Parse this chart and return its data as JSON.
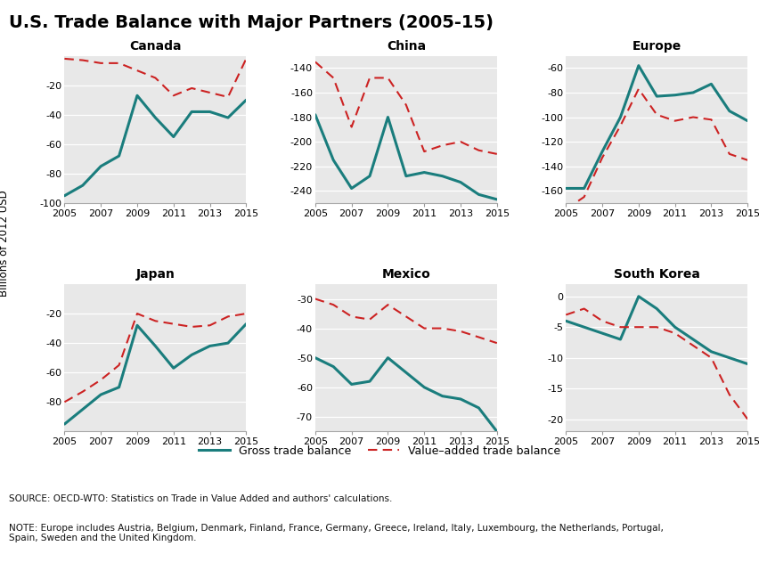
{
  "title": "U.S. Trade Balance with Major Partners (2005-15)",
  "ylabel": "Billions of 2012 USD",
  "source_text": "SOURCE: OECD-WTO: Statistics on Trade in Value Added and authors' calculations.",
  "note_text": "NOTE: Europe includes Austria, Belgium, Denmark, Finland, France, Germany, Greece, Ireland, Italy, Luxembourg, the Netherlands, Portugal,\nSpain, Sweden and the United Kingdom.",
  "years": [
    2005,
    2006,
    2007,
    2008,
    2009,
    2010,
    2011,
    2012,
    2013,
    2014,
    2015
  ],
  "panels": {
    "Canada": {
      "gross": [
        -95,
        -88,
        -75,
        -68,
        -27,
        -42,
        -55,
        -38,
        -38,
        -42,
        -30
      ],
      "va": [
        -2,
        -3,
        -5,
        -5,
        -10,
        -15,
        -27,
        -22,
        -25,
        -28,
        -2
      ],
      "ylim": [
        -100,
        0
      ],
      "yticks": [
        -100,
        -80,
        -60,
        -40,
        -20
      ],
      "row": 0,
      "col": 0
    },
    "China": {
      "gross": [
        -178,
        -215,
        -238,
        -228,
        -180,
        -228,
        -225,
        -228,
        -233,
        -243,
        -247
      ],
      "va": [
        -135,
        -148,
        -188,
        -148,
        -148,
        -170,
        -208,
        -203,
        -200,
        -207,
        -210
      ],
      "ylim": [
        -250,
        -130
      ],
      "yticks": [
        -240,
        -220,
        -200,
        -180,
        -160,
        -140
      ],
      "row": 0,
      "col": 1
    },
    "Europe": {
      "gross": [
        -158,
        -158,
        -128,
        -100,
        -58,
        -83,
        -82,
        -80,
        -73,
        -95,
        -103
      ],
      "va": [
        -175,
        -165,
        -133,
        -107,
        -77,
        -98,
        -103,
        -100,
        -102,
        -130,
        -135
      ],
      "ylim": [
        -170,
        -50
      ],
      "yticks": [
        -160,
        -140,
        -120,
        -100,
        -80,
        -60
      ],
      "row": 0,
      "col": 2
    },
    "Japan": {
      "gross": [
        -95,
        -85,
        -75,
        -70,
        -28,
        -42,
        -57,
        -48,
        -42,
        -40,
        -27
      ],
      "va": [
        -80,
        -73,
        -65,
        -55,
        -20,
        -25,
        -27,
        -29,
        -28,
        -22,
        -20
      ],
      "ylim": [
        -100,
        0
      ],
      "yticks": [
        -80,
        -60,
        -40,
        -20
      ],
      "row": 1,
      "col": 0
    },
    "Mexico": {
      "gross": [
        -50,
        -53,
        -59,
        -58,
        -50,
        -55,
        -60,
        -63,
        -64,
        -67,
        -75
      ],
      "va": [
        -30,
        -32,
        -36,
        -37,
        -32,
        -36,
        -40,
        -40,
        -41,
        -43,
        -45
      ],
      "ylim": [
        -75,
        -25
      ],
      "yticks": [
        -70,
        -60,
        -50,
        -40,
        -30
      ],
      "row": 1,
      "col": 1
    },
    "South Korea": {
      "gross": [
        -4,
        -5,
        -6,
        -7,
        0,
        -2,
        -5,
        -7,
        -9,
        -10,
        -11
      ],
      "va": [
        -3,
        -2,
        -4,
        -5,
        -5,
        -5,
        -6,
        -8,
        -10,
        -16,
        -20
      ],
      "ylim": [
        -22,
        2
      ],
      "yticks": [
        -20,
        -15,
        -10,
        -5,
        0
      ],
      "row": 1,
      "col": 2
    }
  },
  "gross_color": "#1a7d7d",
  "va_color": "#cc2222",
  "background_color": "#e8e8e8",
  "title_fontsize": 14,
  "subtitle_fontsize": 10,
  "tick_fontsize": 8,
  "label_fontsize": 8.5
}
